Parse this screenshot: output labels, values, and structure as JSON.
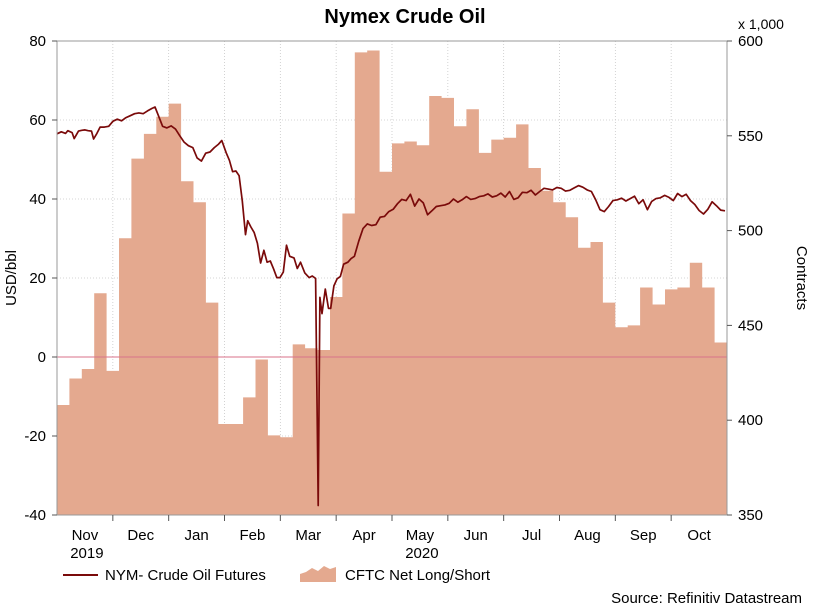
{
  "chart_data": {
    "type": "area+line",
    "title": "Nymex Crude Oil",
    "left_axis": {
      "label": "USD/bbl",
      "min": -40,
      "max": 80,
      "ticks": [
        80,
        60,
        40,
        20,
        0,
        -20,
        -40
      ]
    },
    "right_axis": {
      "label": "Contracts",
      "multiplier_label": "x 1,000",
      "min": 350,
      "max": 600,
      "ticks": [
        600,
        550,
        500,
        450,
        400,
        350
      ]
    },
    "x_axis": {
      "months": [
        "Nov",
        "Dec",
        "Jan",
        "Feb",
        "Mar",
        "Apr",
        "May",
        "Jun",
        "Jul",
        "Aug",
        "Sep",
        "Oct"
      ],
      "years": [
        {
          "label": "2019",
          "under": "Nov"
        },
        {
          "label": "2020",
          "under": "May"
        }
      ]
    },
    "grid": true,
    "zero_line": 0,
    "legend": {
      "position": "bottom-left"
    },
    "source": "Source: Refinitiv Datastream",
    "series": [
      {
        "name": "NYM- Crude Oil Futures",
        "kind": "line",
        "axis": "left",
        "color": "#7a0a0a",
        "values": [
          [
            0.0,
            56.5
          ],
          [
            0.2,
            57.0
          ],
          [
            0.4,
            56.6
          ],
          [
            0.5,
            57.3
          ],
          [
            0.7,
            56.8
          ],
          [
            0.8,
            55.3
          ],
          [
            1.0,
            57.2
          ],
          [
            1.15,
            57.4
          ],
          [
            1.3,
            57.5
          ],
          [
            1.45,
            57.3
          ],
          [
            1.6,
            57.2
          ],
          [
            1.7,
            55.2
          ],
          [
            1.85,
            56.6
          ],
          [
            2.0,
            58.2
          ],
          [
            2.2,
            58.2
          ],
          [
            2.4,
            58.4
          ],
          [
            2.6,
            59.7
          ],
          [
            2.8,
            60.2
          ],
          [
            3.0,
            59.8
          ],
          [
            3.2,
            60.6
          ],
          [
            3.4,
            61.1
          ],
          [
            3.6,
            61.6
          ],
          [
            3.8,
            61.8
          ],
          [
            4.0,
            61.6
          ],
          [
            4.2,
            62.3
          ],
          [
            4.4,
            62.9
          ],
          [
            4.55,
            63.3
          ],
          [
            4.7,
            61.2
          ],
          [
            4.9,
            58.4
          ],
          [
            5.1,
            58.0
          ],
          [
            5.3,
            58.5
          ],
          [
            5.5,
            57.7
          ],
          [
            5.7,
            56.0
          ],
          [
            5.9,
            54.4
          ],
          [
            6.1,
            53.5
          ],
          [
            6.3,
            53.0
          ],
          [
            6.5,
            50.4
          ],
          [
            6.7,
            49.6
          ],
          [
            6.9,
            51.6
          ],
          [
            7.1,
            51.9
          ],
          [
            7.3,
            53.0
          ],
          [
            7.5,
            53.9
          ],
          [
            7.65,
            54.8
          ],
          [
            7.85,
            51.7
          ],
          [
            8.0,
            49.8
          ],
          [
            8.15,
            46.9
          ],
          [
            8.3,
            47.1
          ],
          [
            8.45,
            45.9
          ],
          [
            8.6,
            39.5
          ],
          [
            8.75,
            31.0
          ],
          [
            8.85,
            34.5
          ],
          [
            9.0,
            32.9
          ],
          [
            9.15,
            31.5
          ],
          [
            9.3,
            28.8
          ],
          [
            9.45,
            23.8
          ],
          [
            9.6,
            27.0
          ],
          [
            9.75,
            24.0
          ],
          [
            9.9,
            24.3
          ],
          [
            10.05,
            22.3
          ],
          [
            10.2,
            20.1
          ],
          [
            10.35,
            20.1
          ],
          [
            10.5,
            21.5
          ],
          [
            10.65,
            28.3
          ],
          [
            10.8,
            25.5
          ],
          [
            11.0,
            25.1
          ],
          [
            11.15,
            22.4
          ],
          [
            11.3,
            24.0
          ],
          [
            11.5,
            21.3
          ],
          [
            11.7,
            20.1
          ],
          [
            11.85,
            20.5
          ],
          [
            12.0,
            19.9
          ],
          [
            12.12,
            -37.6
          ],
          [
            12.2,
            15.1
          ],
          [
            12.3,
            11.0
          ],
          [
            12.45,
            17.2
          ],
          [
            12.6,
            12.3
          ],
          [
            12.7,
            12.3
          ],
          [
            12.85,
            18.0
          ],
          [
            13.0,
            19.8
          ],
          [
            13.15,
            20.4
          ],
          [
            13.3,
            23.5
          ],
          [
            13.5,
            24.0
          ],
          [
            13.65,
            24.9
          ],
          [
            13.8,
            25.5
          ],
          [
            14.0,
            29.3
          ],
          [
            14.2,
            32.5
          ],
          [
            14.4,
            33.7
          ],
          [
            14.6,
            33.3
          ],
          [
            14.8,
            33.5
          ],
          [
            15.0,
            35.4
          ],
          [
            15.2,
            35.6
          ],
          [
            15.4,
            36.8
          ],
          [
            15.6,
            37.4
          ],
          [
            15.8,
            38.8
          ],
          [
            16.0,
            39.9
          ],
          [
            16.2,
            39.6
          ],
          [
            16.4,
            41.2
          ],
          [
            16.6,
            38.2
          ],
          [
            16.8,
            40.0
          ],
          [
            17.0,
            39.0
          ],
          [
            17.2,
            36.0
          ],
          [
            17.4,
            37.0
          ],
          [
            17.6,
            38.1
          ],
          [
            17.8,
            38.3
          ],
          [
            18.0,
            38.5
          ],
          [
            18.2,
            38.9
          ],
          [
            18.4,
            40.0
          ],
          [
            18.6,
            39.2
          ],
          [
            18.8,
            39.8
          ],
          [
            19.0,
            40.6
          ],
          [
            19.2,
            39.9
          ],
          [
            19.4,
            40.1
          ],
          [
            19.6,
            40.6
          ],
          [
            19.8,
            40.8
          ],
          [
            20.0,
            41.3
          ],
          [
            20.2,
            40.5
          ],
          [
            20.4,
            40.8
          ],
          [
            20.6,
            41.5
          ],
          [
            20.8,
            40.5
          ],
          [
            21.0,
            41.9
          ],
          [
            21.2,
            39.9
          ],
          [
            21.4,
            40.3
          ],
          [
            21.6,
            41.7
          ],
          [
            21.8,
            41.6
          ],
          [
            22.0,
            42.2
          ],
          [
            22.2,
            41.0
          ],
          [
            22.4,
            41.9
          ],
          [
            22.6,
            42.7
          ],
          [
            22.8,
            42.5
          ],
          [
            23.0,
            42.3
          ],
          [
            23.2,
            42.9
          ],
          [
            23.4,
            42.7
          ],
          [
            23.6,
            42.0
          ],
          [
            23.8,
            42.2
          ],
          [
            24.0,
            42.8
          ],
          [
            24.2,
            43.4
          ],
          [
            24.4,
            43.0
          ],
          [
            24.6,
            42.3
          ],
          [
            24.8,
            41.9
          ],
          [
            25.0,
            39.8
          ],
          [
            25.2,
            37.3
          ],
          [
            25.4,
            36.8
          ],
          [
            25.6,
            38.1
          ],
          [
            25.8,
            39.6
          ],
          [
            26.0,
            39.8
          ],
          [
            26.2,
            40.2
          ],
          [
            26.4,
            39.5
          ],
          [
            26.6,
            40.1
          ],
          [
            26.8,
            40.7
          ],
          [
            27.0,
            38.8
          ],
          [
            27.2,
            39.8
          ],
          [
            27.4,
            37.3
          ],
          [
            27.6,
            39.4
          ],
          [
            27.8,
            40.1
          ],
          [
            28.0,
            40.3
          ],
          [
            28.2,
            40.9
          ],
          [
            28.4,
            40.4
          ],
          [
            28.6,
            39.6
          ],
          [
            28.8,
            41.4
          ],
          [
            29.0,
            40.6
          ],
          [
            29.2,
            41.2
          ],
          [
            29.4,
            39.6
          ],
          [
            29.6,
            38.6
          ],
          [
            29.8,
            37.1
          ],
          [
            30.0,
            36.2
          ],
          [
            30.2,
            37.4
          ],
          [
            30.4,
            39.3
          ],
          [
            30.6,
            38.3
          ],
          [
            30.8,
            37.2
          ],
          [
            31.0,
            37.0
          ]
        ]
      },
      {
        "name": "CFTC Net Long/Short",
        "kind": "area",
        "axis": "right",
        "color": "#e4a98f",
        "values": [
          [
            0,
            408
          ],
          [
            1,
            422
          ],
          [
            2,
            427
          ],
          [
            3,
            467
          ],
          [
            4,
            426
          ],
          [
            5,
            496
          ],
          [
            6,
            538
          ],
          [
            7,
            551
          ],
          [
            8,
            560
          ],
          [
            9,
            567
          ],
          [
            10,
            526
          ],
          [
            11,
            515
          ],
          [
            12,
            462
          ],
          [
            13,
            398
          ],
          [
            14,
            398
          ],
          [
            15,
            412
          ],
          [
            16,
            432
          ],
          [
            17,
            392
          ],
          [
            18,
            391
          ],
          [
            19,
            440
          ],
          [
            20,
            438
          ],
          [
            21,
            437
          ],
          [
            22,
            465
          ],
          [
            23,
            509
          ],
          [
            24,
            594
          ],
          [
            25,
            595
          ],
          [
            26,
            531
          ],
          [
            27,
            546
          ],
          [
            28,
            547
          ],
          [
            29,
            545
          ],
          [
            30,
            571
          ],
          [
            31,
            570
          ],
          [
            32,
            555
          ],
          [
            33,
            564
          ],
          [
            34,
            541
          ],
          [
            35,
            548
          ],
          [
            36,
            549
          ],
          [
            37,
            556
          ],
          [
            38,
            533
          ],
          [
            39,
            521
          ],
          [
            40,
            515
          ],
          [
            41,
            507
          ],
          [
            42,
            491
          ],
          [
            43,
            494
          ],
          [
            44,
            462
          ],
          [
            45,
            449
          ],
          [
            46,
            450
          ],
          [
            47,
            470
          ],
          [
            48,
            461
          ],
          [
            49,
            469
          ],
          [
            50,
            470
          ],
          [
            51,
            483
          ],
          [
            52,
            470
          ],
          [
            53,
            441
          ]
        ]
      }
    ]
  }
}
